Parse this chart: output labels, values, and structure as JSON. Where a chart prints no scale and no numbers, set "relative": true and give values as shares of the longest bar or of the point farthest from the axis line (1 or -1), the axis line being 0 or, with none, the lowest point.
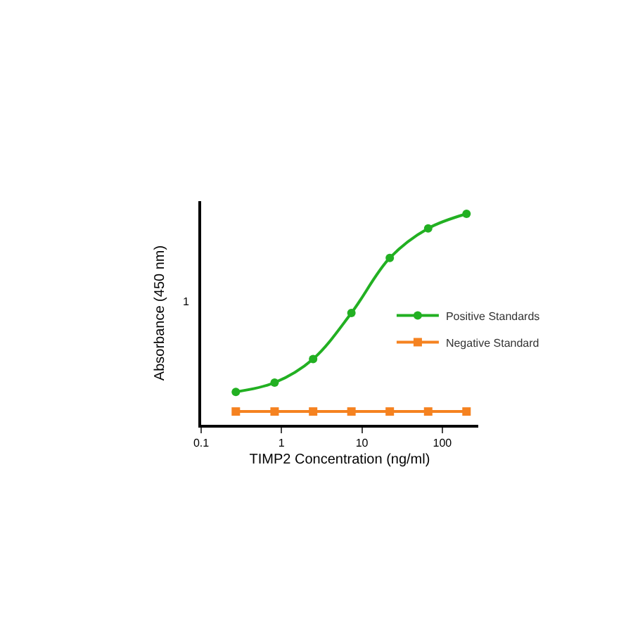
{
  "chart_data": {
    "type": "line",
    "xlabel": "TIMP2 Concentration (ng/ml)",
    "ylabel": "Absorbance (450 nm)",
    "x": [
      0.27,
      0.82,
      2.47,
      7.4,
      22.2,
      66.7,
      200
    ],
    "series": [
      {
        "name": "Positive Standards",
        "color": "#22b022",
        "marker": "circle",
        "line_style": "solid",
        "values": [
          0.156,
          0.2,
          0.312,
          0.53,
          0.791,
          0.931,
          1.0
        ]
      },
      {
        "name": "Negative Standard",
        "color": "#f58220",
        "marker": "square",
        "line_style": "solid",
        "values": [
          0.063,
          0.063,
          0.063,
          0.063,
          0.063,
          0.063,
          0.063
        ]
      }
    ],
    "relative": true,
    "log": "x",
    "xlim": [
      0.1,
      280
    ],
    "xticks": [
      0.1,
      1,
      10,
      100
    ],
    "annotations": [
      "1"
    ],
    "legend": "right"
  }
}
